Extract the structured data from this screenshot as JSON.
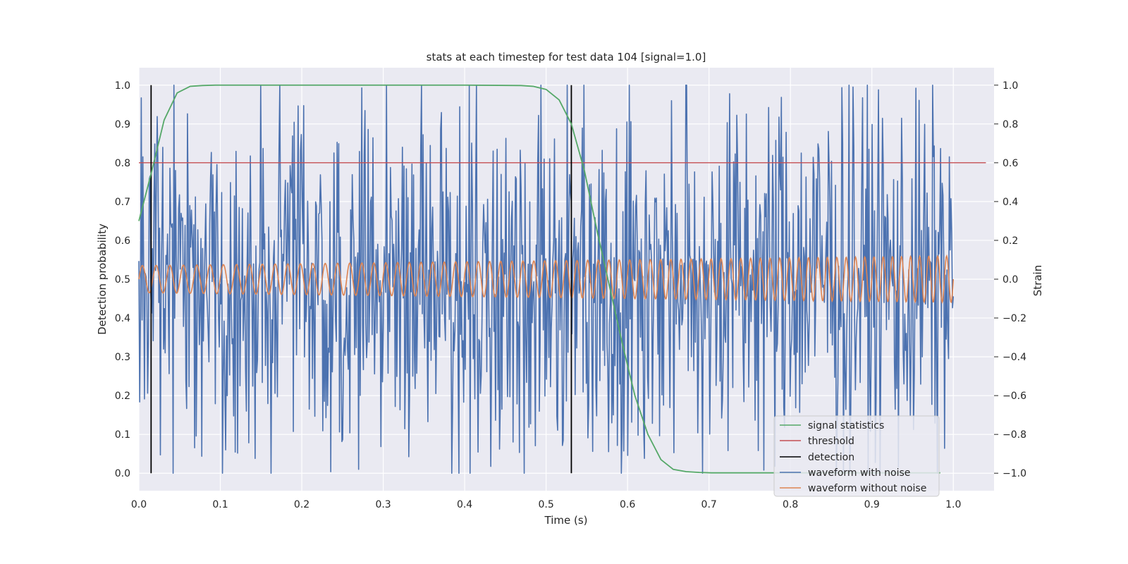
{
  "chart_data": {
    "type": "line",
    "title": "stats at each timestep for test data 104 [signal=1.0]",
    "xlabel": "Time (s)",
    "ylabel_left": "Detection probability",
    "ylabel_right": "Strain",
    "xlim": [
      0.0,
      1.05
    ],
    "ylim_left": [
      -0.045,
      1.045
    ],
    "ylim_right": [
      -1.09,
      1.09
    ],
    "x_ticks": [
      0.0,
      0.1,
      0.2,
      0.3,
      0.4,
      0.5,
      0.6,
      0.7,
      0.8,
      0.9,
      1.0
    ],
    "x_tick_labels": [
      "0.0",
      "0.1",
      "0.2",
      "0.3",
      "0.4",
      "0.5",
      "0.6",
      "0.7",
      "0.8",
      "0.9",
      "1.0"
    ],
    "y_left_ticks": [
      0.0,
      0.1,
      0.2,
      0.3,
      0.4,
      0.5,
      0.6,
      0.7,
      0.8,
      0.9,
      1.0
    ],
    "y_left_tick_labels": [
      "0.0",
      "0.1",
      "0.2",
      "0.3",
      "0.4",
      "0.5",
      "0.6",
      "0.7",
      "0.8",
      "0.9",
      "1.0"
    ],
    "y_right_ticks": [
      -1.0,
      -0.8,
      -0.6,
      -0.4,
      -0.2,
      0.0,
      0.2,
      0.4,
      0.6,
      0.8,
      1.0
    ],
    "y_right_tick_labels": [
      "−1.0",
      "−0.8",
      "−0.6",
      "−0.4",
      "−0.2",
      "0.0",
      "0.2",
      "0.4",
      "0.6",
      "0.8",
      "1.0"
    ],
    "grid": true,
    "legend_position": "lower-right",
    "series": [
      {
        "name": "signal statistics",
        "axis": "left",
        "color": "#55a868",
        "x": [
          0.0,
          0.016,
          0.031,
          0.047,
          0.063,
          0.078,
          0.094,
          0.109,
          0.125,
          0.2,
          0.3,
          0.4,
          0.469,
          0.484,
          0.5,
          0.516,
          0.531,
          0.547,
          0.563,
          0.578,
          0.594,
          0.609,
          0.625,
          0.641,
          0.656,
          0.672,
          0.688,
          0.703,
          0.75,
          0.8,
          0.85,
          0.9,
          0.95,
          0.984
        ],
        "y": [
          0.65,
          0.78,
          0.91,
          0.98,
          0.997,
          0.999,
          1.0,
          1.0,
          1.0,
          1.0,
          1.0,
          1.0,
          0.999,
          0.997,
          0.989,
          0.962,
          0.9,
          0.78,
          0.62,
          0.48,
          0.33,
          0.2,
          0.1,
          0.035,
          0.01,
          0.004,
          0.002,
          0.001,
          0.001,
          0.001,
          0.001,
          0.001,
          0.001,
          0.001
        ]
      },
      {
        "name": "threshold",
        "axis": "left",
        "color": "#c44e52",
        "x": [
          0.0,
          1.04
        ],
        "y": [
          0.8,
          0.8
        ]
      },
      {
        "name": "detection",
        "axis": "left",
        "color": "#000000",
        "x_positions": [
          0.015,
          0.531
        ],
        "y": [
          0.0,
          1.0
        ]
      },
      {
        "name": "waveform with noise",
        "axis": "right",
        "color": "#4c72b0",
        "x_range": [
          0.0,
          1.0
        ],
        "n_points": 1024,
        "y_range": [
          -1.0,
          1.0
        ]
      },
      {
        "name": "waveform without noise",
        "axis": "right",
        "color": "#dd8452",
        "x_range": [
          0.0,
          1.0
        ],
        "amplitude_start": 0.07,
        "amplitude_end": 0.12,
        "cycles": 75
      }
    ]
  }
}
